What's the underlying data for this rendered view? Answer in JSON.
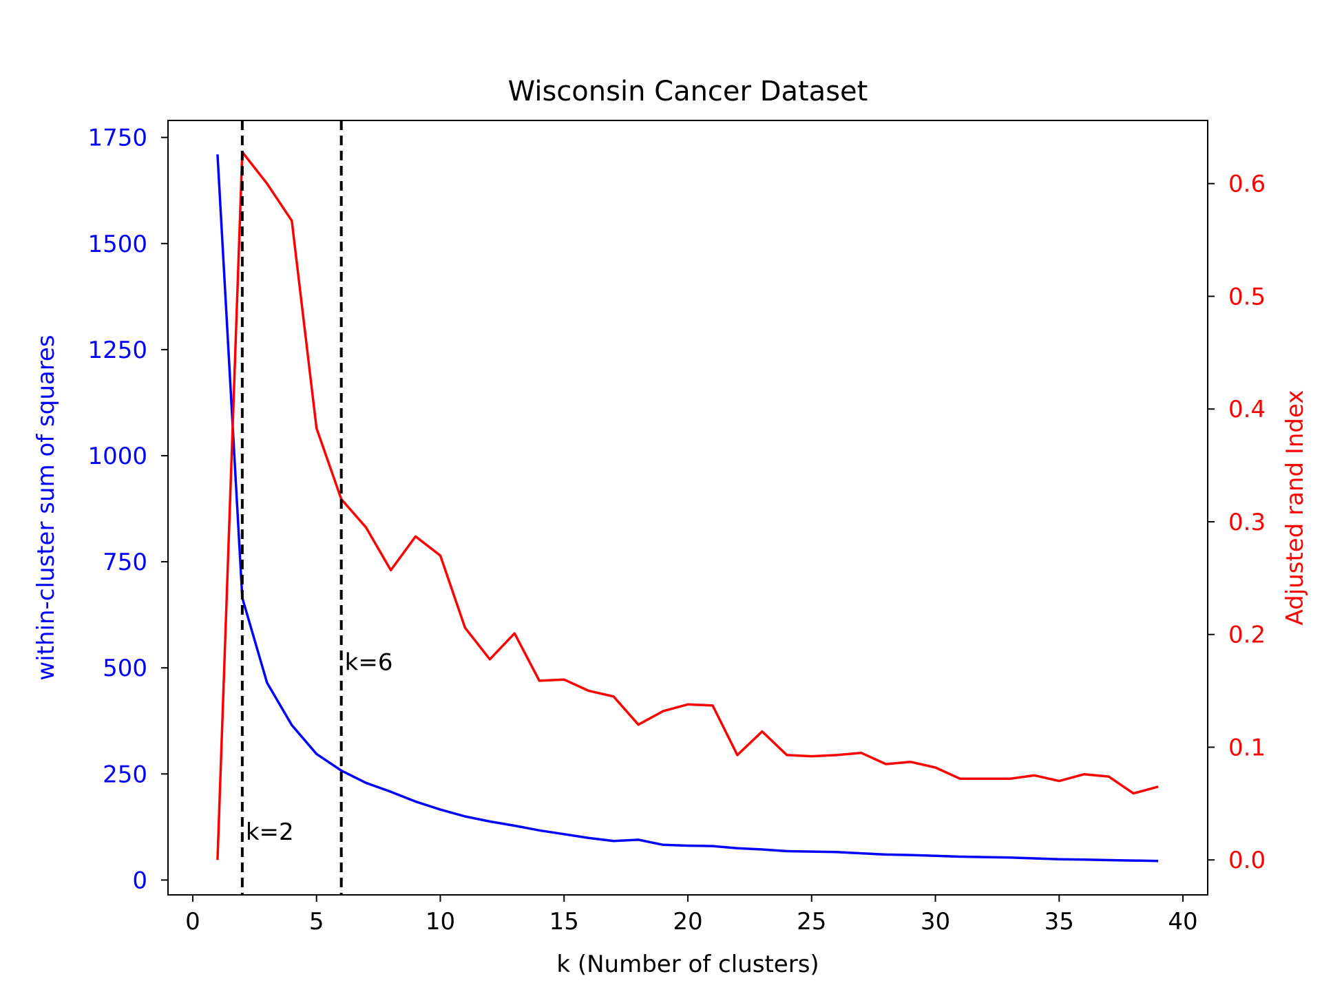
{
  "chart_data": {
    "type": "line",
    "title": "Wisconsin Cancer Dataset",
    "xlabel": "k (Number of clusters)",
    "ylabel_left": "within-cluster sum of squares",
    "ylabel_right": "Adjusted rand Index",
    "xlim": [
      -1,
      41
    ],
    "ylim_left": [
      -35,
      1790
    ],
    "ylim_right": [
      -0.031,
      0.656
    ],
    "x_ticks": [
      0,
      5,
      10,
      15,
      20,
      25,
      30,
      35,
      40
    ],
    "y_ticks_left": [
      0,
      250,
      500,
      750,
      1000,
      1250,
      1500,
      1750
    ],
    "y_ticks_right": [
      0.0,
      0.1,
      0.2,
      0.3,
      0.4,
      0.5,
      0.6
    ],
    "y_tick_labels_right": [
      "0.0",
      "0.1",
      "0.2",
      "0.3",
      "0.4",
      "0.5",
      "0.6"
    ],
    "grid": false,
    "colors": {
      "left_axis": "#0000ff",
      "right_axis": "#ff0000",
      "marker_line": "#000000"
    },
    "x": [
      1,
      2,
      3,
      4,
      5,
      6,
      7,
      8,
      9,
      10,
      11,
      12,
      13,
      14,
      15,
      16,
      17,
      18,
      19,
      20,
      21,
      22,
      23,
      24,
      25,
      26,
      27,
      28,
      29,
      30,
      31,
      32,
      33,
      34,
      35,
      36,
      37,
      38,
      39
    ],
    "series": [
      {
        "axis": "left",
        "color": "#0000ff",
        "values": [
          1710,
          665,
          465,
          365,
          297,
          258,
          229,
          208,
          185,
          166,
          150,
          138,
          128,
          117,
          108,
          99,
          92,
          95,
          83,
          81,
          80,
          75,
          72,
          68,
          67,
          66,
          63,
          60,
          59,
          57,
          55,
          54,
          53,
          51,
          49,
          48,
          47,
          46,
          45
        ]
      },
      {
        "axis": "right",
        "color": "#ff0000",
        "values": [
          0.0,
          0.628,
          0.6,
          0.567,
          0.383,
          0.32,
          0.295,
          0.257,
          0.287,
          0.27,
          0.206,
          0.178,
          0.201,
          0.159,
          0.16,
          0.15,
          0.145,
          0.12,
          0.132,
          0.138,
          0.137,
          0.093,
          0.114,
          0.093,
          0.092,
          0.093,
          0.095,
          0.085,
          0.087,
          0.082,
          0.072,
          0.072,
          0.072,
          0.075,
          0.07,
          0.076,
          0.074,
          0.059,
          0.065
        ]
      }
    ],
    "vlines": [
      {
        "x": 2,
        "label": "k=2",
        "label_y_left": 95
      },
      {
        "x": 6,
        "label": "k=6",
        "label_y_left": 495
      }
    ]
  }
}
